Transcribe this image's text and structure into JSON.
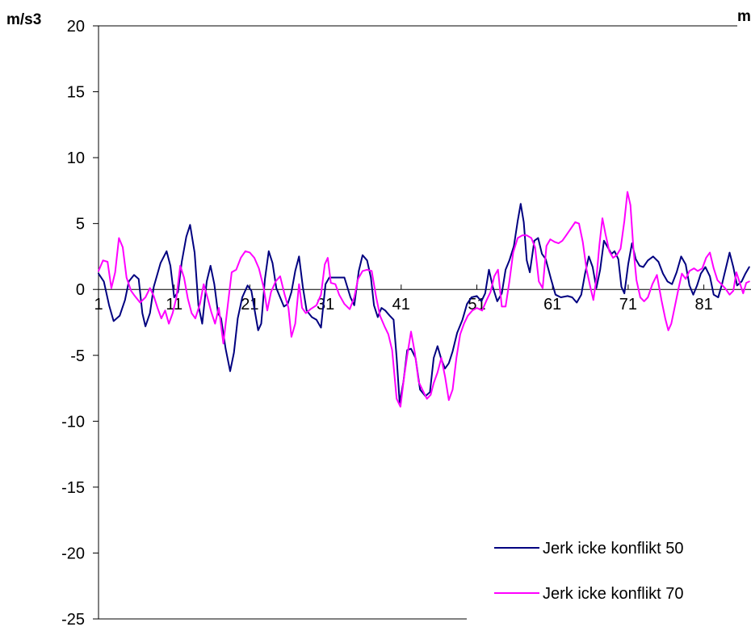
{
  "chart_data": {
    "type": "line",
    "title": "",
    "xlabel": "",
    "ylabel": "m/s3",
    "secondary_unit_label": "m",
    "ylim": [
      -25,
      20
    ],
    "yticks": [
      "20",
      "15",
      "10",
      "5",
      "0",
      "-5",
      "-10",
      "-15",
      "-20",
      "-25"
    ],
    "xlim": [
      1,
      89
    ],
    "xticks": [
      "1",
      "11",
      "21",
      "31",
      "41",
      "51",
      "61",
      "71",
      "81"
    ],
    "grid": false,
    "legend_position": "bottom-right",
    "series": [
      {
        "name": "Jerk icke konflikt 50",
        "color": "#000080",
        "points": [
          [
            1,
            1.2
          ],
          [
            1.7,
            0.6
          ],
          [
            2.4,
            -1.2
          ],
          [
            3,
            -2.4
          ],
          [
            3.8,
            -2
          ],
          [
            4.5,
            -0.8
          ],
          [
            5,
            0.6
          ],
          [
            5.7,
            1.1
          ],
          [
            6.3,
            0.8
          ],
          [
            6.8,
            -1.8
          ],
          [
            7.2,
            -2.8
          ],
          [
            7.8,
            -1.8
          ],
          [
            8.3,
            0.2
          ],
          [
            9.2,
            2
          ],
          [
            10,
            2.9
          ],
          [
            10.5,
            1.8
          ],
          [
            11,
            -0.6
          ],
          [
            11.5,
            -0.2
          ],
          [
            12,
            2.1
          ],
          [
            12.6,
            4
          ],
          [
            13.1,
            4.9
          ],
          [
            13.7,
            2.8
          ],
          [
            14.2,
            -1.2
          ],
          [
            14.7,
            -2.6
          ],
          [
            15.3,
            0.6
          ],
          [
            15.8,
            1.8
          ],
          [
            16.3,
            0.4
          ],
          [
            16.8,
            -1.8
          ],
          [
            17.2,
            -2.2
          ],
          [
            17.8,
            -4.5
          ],
          [
            18.4,
            -6.2
          ],
          [
            18.9,
            -4.8
          ],
          [
            19.4,
            -2.2
          ],
          [
            20,
            -0.6
          ],
          [
            20.7,
            0.3
          ],
          [
            21.2,
            -0.1
          ],
          [
            21.7,
            -1.8
          ],
          [
            22.1,
            -3.1
          ],
          [
            22.5,
            -2.6
          ],
          [
            23,
            0.8
          ],
          [
            23.5,
            2.9
          ],
          [
            24,
            2
          ],
          [
            24.5,
            0.1
          ],
          [
            25,
            -0.6
          ],
          [
            25.5,
            -1.3
          ],
          [
            26,
            -1.1
          ],
          [
            26.5,
            -0.2
          ],
          [
            27,
            1.4
          ],
          [
            27.5,
            2.5
          ],
          [
            28,
            0.2
          ],
          [
            28.5,
            -1.6
          ],
          [
            29.2,
            -2.1
          ],
          [
            29.8,
            -2.3
          ],
          [
            30.4,
            -2.9
          ],
          [
            31,
            0.4
          ],
          [
            31.5,
            0.9
          ],
          [
            32.5,
            0.9
          ],
          [
            33.5,
            0.9
          ],
          [
            34.3,
            -0.6
          ],
          [
            34.8,
            -1.2
          ],
          [
            35.4,
            1.4
          ],
          [
            35.9,
            2.6
          ],
          [
            36.5,
            2.2
          ],
          [
            37,
            0.9
          ],
          [
            37.4,
            -1.2
          ],
          [
            37.9,
            -2.1
          ],
          [
            38.4,
            -1.4
          ],
          [
            38.9,
            -1.6
          ],
          [
            39.5,
            -2
          ],
          [
            40,
            -2.3
          ],
          [
            40.4,
            -5.2
          ],
          [
            40.8,
            -8.6
          ],
          [
            41.3,
            -7
          ],
          [
            41.8,
            -4.6
          ],
          [
            42.3,
            -4.5
          ],
          [
            42.9,
            -5.2
          ],
          [
            43.5,
            -7.6
          ],
          [
            44.2,
            -8.1
          ],
          [
            44.8,
            -7.8
          ],
          [
            45.3,
            -5.2
          ],
          [
            45.8,
            -4.3
          ],
          [
            46.3,
            -5.3
          ],
          [
            46.8,
            -6
          ],
          [
            47.3,
            -5.6
          ],
          [
            47.8,
            -4.7
          ],
          [
            48.4,
            -3.3
          ],
          [
            49.1,
            -2.3
          ],
          [
            49.7,
            -1.1
          ],
          [
            50.3,
            -0.6
          ],
          [
            51,
            -0.5
          ],
          [
            51.6,
            -0.9
          ],
          [
            52.1,
            -0.3
          ],
          [
            52.6,
            1.5
          ],
          [
            53.1,
            0.2
          ],
          [
            53.7,
            -0.9
          ],
          [
            54.3,
            -0.3
          ],
          [
            54.8,
            1.5
          ],
          [
            55.3,
            2.2
          ],
          [
            55.9,
            3.3
          ],
          [
            56.4,
            5.2
          ],
          [
            56.8,
            6.5
          ],
          [
            57.2,
            5.1
          ],
          [
            57.6,
            2.2
          ],
          [
            58,
            1.3
          ],
          [
            58.6,
            3.7
          ],
          [
            59.1,
            3.9
          ],
          [
            59.6,
            2.7
          ],
          [
            60.1,
            2.3
          ],
          [
            60.8,
            0.8
          ],
          [
            61.4,
            -0.4
          ],
          [
            62.1,
            -0.6
          ],
          [
            63,
            -0.5
          ],
          [
            63.6,
            -0.6
          ],
          [
            64.2,
            -1
          ],
          [
            64.8,
            -0.4
          ],
          [
            65.3,
            1.2
          ],
          [
            65.8,
            2.5
          ],
          [
            66.3,
            1.7
          ],
          [
            66.8,
            0.1
          ],
          [
            67.3,
            1.5
          ],
          [
            67.8,
            3.7
          ],
          [
            68.3,
            3.2
          ],
          [
            68.8,
            2.7
          ],
          [
            69.2,
            2.9
          ],
          [
            69.7,
            2.3
          ],
          [
            70.1,
            0.2
          ],
          [
            70.5,
            -0.3
          ],
          [
            71,
            1.9
          ],
          [
            71.5,
            3.5
          ],
          [
            72,
            2.3
          ],
          [
            72.5,
            1.8
          ],
          [
            73,
            1.7
          ],
          [
            73.6,
            2.2
          ],
          [
            74.3,
            2.5
          ],
          [
            75,
            2.1
          ],
          [
            75.6,
            1.2
          ],
          [
            76.2,
            0.6
          ],
          [
            76.8,
            0.4
          ],
          [
            77.4,
            1.3
          ],
          [
            78,
            2.5
          ],
          [
            78.6,
            1.9
          ],
          [
            79.1,
            0.3
          ],
          [
            79.6,
            -0.4
          ],
          [
            80.1,
            0.3
          ],
          [
            80.6,
            1.2
          ],
          [
            81.2,
            1.7
          ],
          [
            81.8,
            1
          ],
          [
            82.3,
            -0.4
          ],
          [
            82.9,
            -0.6
          ],
          [
            83.4,
            0.4
          ],
          [
            83.9,
            1.6
          ],
          [
            84.4,
            2.8
          ],
          [
            84.9,
            1.7
          ],
          [
            85.4,
            0.3
          ],
          [
            86,
            0.6
          ],
          [
            86.5,
            1.2
          ],
          [
            87,
            1.7
          ]
        ]
      },
      {
        "name": "Jerk icke konflikt 70",
        "color": "#ff00ff",
        "points": [
          [
            1,
            1.4
          ],
          [
            1.6,
            2.2
          ],
          [
            2.2,
            2.1
          ],
          [
            2.7,
            0.1
          ],
          [
            3.2,
            1.3
          ],
          [
            3.7,
            3.9
          ],
          [
            4.2,
            3.2
          ],
          [
            4.7,
            0.9
          ],
          [
            5.3,
            -0.1
          ],
          [
            5.8,
            -0.5
          ],
          [
            6.5,
            -1
          ],
          [
            7.2,
            -0.6
          ],
          [
            7.8,
            0.1
          ],
          [
            8.3,
            -0.5
          ],
          [
            8.8,
            -1.4
          ],
          [
            9.3,
            -2.2
          ],
          [
            9.8,
            -1.6
          ],
          [
            10.3,
            -2.6
          ],
          [
            10.8,
            -1.8
          ],
          [
            11.3,
            -0.6
          ],
          [
            11.8,
            1.8
          ],
          [
            12.3,
            0.9
          ],
          [
            12.8,
            -0.7
          ],
          [
            13.3,
            -1.8
          ],
          [
            13.8,
            -2.2
          ],
          [
            14.4,
            -1.1
          ],
          [
            14.9,
            0.4
          ],
          [
            15.4,
            -0.6
          ],
          [
            15.9,
            -1.7
          ],
          [
            16.4,
            -2.6
          ],
          [
            16.9,
            -1.4
          ],
          [
            17.5,
            -4.1
          ],
          [
            18,
            -1.6
          ],
          [
            18.6,
            1.3
          ],
          [
            19.2,
            1.5
          ],
          [
            19.8,
            2.4
          ],
          [
            20.4,
            2.9
          ],
          [
            21,
            2.8
          ],
          [
            21.6,
            2.4
          ],
          [
            22.2,
            1.6
          ],
          [
            22.8,
            0.2
          ],
          [
            23.3,
            -1.6
          ],
          [
            23.8,
            -0.2
          ],
          [
            24.4,
            0.6
          ],
          [
            25,
            1
          ],
          [
            25.6,
            -0.4
          ],
          [
            26.1,
            -1.4
          ],
          [
            26.5,
            -3.6
          ],
          [
            27,
            -2.6
          ],
          [
            27.5,
            0.4
          ],
          [
            27.9,
            -1.4
          ],
          [
            28.4,
            -1.8
          ],
          [
            29,
            -1.5
          ],
          [
            29.8,
            -1.2
          ],
          [
            30.4,
            -0.4
          ],
          [
            30.9,
            1.9
          ],
          [
            31.3,
            2.4
          ],
          [
            31.7,
            0.5
          ],
          [
            32.3,
            0.4
          ],
          [
            32.8,
            -0.4
          ],
          [
            33.5,
            -1.1
          ],
          [
            34.2,
            -1.5
          ],
          [
            34.8,
            -0.6
          ],
          [
            35.3,
            0.8
          ],
          [
            35.9,
            1.4
          ],
          [
            36.5,
            1.5
          ],
          [
            37.1,
            1.4
          ],
          [
            37.7,
            -0.6
          ],
          [
            38.2,
            -2
          ],
          [
            38.8,
            -2.8
          ],
          [
            39.3,
            -3.4
          ],
          [
            39.8,
            -4.6
          ],
          [
            40.4,
            -8.3
          ],
          [
            40.9,
            -8.9
          ],
          [
            41.4,
            -6.6
          ],
          [
            41.8,
            -5
          ],
          [
            42.3,
            -3.2
          ],
          [
            42.8,
            -4.8
          ],
          [
            43.3,
            -7
          ],
          [
            43.8,
            -7.6
          ],
          [
            44.4,
            -8.3
          ],
          [
            44.9,
            -8
          ],
          [
            45.3,
            -7.1
          ],
          [
            45.8,
            -6.3
          ],
          [
            46.3,
            -5.2
          ],
          [
            46.8,
            -6.6
          ],
          [
            47.3,
            -8.4
          ],
          [
            47.8,
            -7.6
          ],
          [
            48.3,
            -5.2
          ],
          [
            48.8,
            -3.4
          ],
          [
            49.3,
            -2.6
          ],
          [
            49.8,
            -2
          ],
          [
            50.4,
            -1.6
          ],
          [
            51,
            -1.4
          ],
          [
            51.7,
            -1.6
          ],
          [
            52.3,
            -0.8
          ],
          [
            52.8,
            -0.2
          ],
          [
            53.3,
            1
          ],
          [
            53.8,
            1.5
          ],
          [
            54.3,
            -1.3
          ],
          [
            54.8,
            -1.3
          ],
          [
            55.3,
            0.6
          ],
          [
            55.8,
            2.8
          ],
          [
            56.4,
            3.9
          ],
          [
            57,
            4.1
          ],
          [
            57.6,
            4.1
          ],
          [
            58.2,
            3.9
          ],
          [
            58.7,
            3.2
          ],
          [
            59.2,
            0.6
          ],
          [
            59.7,
            0.1
          ],
          [
            60.2,
            3.3
          ],
          [
            60.7,
            3.8
          ],
          [
            61.3,
            3.6
          ],
          [
            61.8,
            3.5
          ],
          [
            62.3,
            3.7
          ],
          [
            62.8,
            4.1
          ],
          [
            63.4,
            4.6
          ],
          [
            64,
            5.1
          ],
          [
            64.5,
            5
          ],
          [
            65,
            3.6
          ],
          [
            65.5,
            1.5
          ],
          [
            66,
            0.2
          ],
          [
            66.4,
            -0.8
          ],
          [
            66.8,
            0.8
          ],
          [
            67.2,
            3.4
          ],
          [
            67.6,
            5.4
          ],
          [
            68,
            4.2
          ],
          [
            68.5,
            2.9
          ],
          [
            69,
            2.4
          ],
          [
            69.5,
            2.6
          ],
          [
            70,
            3.1
          ],
          [
            70.5,
            5.2
          ],
          [
            70.9,
            7.4
          ],
          [
            71.3,
            6.4
          ],
          [
            71.7,
            3
          ],
          [
            72.1,
            0.7
          ],
          [
            72.6,
            -0.6
          ],
          [
            73.1,
            -0.9
          ],
          [
            73.6,
            -0.6
          ],
          [
            74.2,
            0.4
          ],
          [
            74.8,
            1.1
          ],
          [
            75.4,
            -0.8
          ],
          [
            75.9,
            -2.2
          ],
          [
            76.3,
            -3.1
          ],
          [
            76.7,
            -2.6
          ],
          [
            77.2,
            -1.2
          ],
          [
            77.7,
            0.2
          ],
          [
            78.1,
            1.2
          ],
          [
            78.6,
            0.8
          ],
          [
            79.1,
            1.4
          ],
          [
            79.7,
            1.6
          ],
          [
            80.2,
            1.4
          ],
          [
            80.8,
            1.6
          ],
          [
            81.3,
            2.4
          ],
          [
            81.8,
            2.8
          ],
          [
            82.3,
            1.6
          ],
          [
            82.8,
            0.7
          ],
          [
            83.3,
            0.4
          ],
          [
            83.8,
            0.1
          ],
          [
            84.4,
            -0.4
          ],
          [
            84.9,
            -0.1
          ],
          [
            85.3,
            1.3
          ],
          [
            85.7,
            0.6
          ],
          [
            86.2,
            -0.3
          ],
          [
            86.6,
            0.5
          ],
          [
            87,
            0.6
          ]
        ]
      }
    ]
  }
}
